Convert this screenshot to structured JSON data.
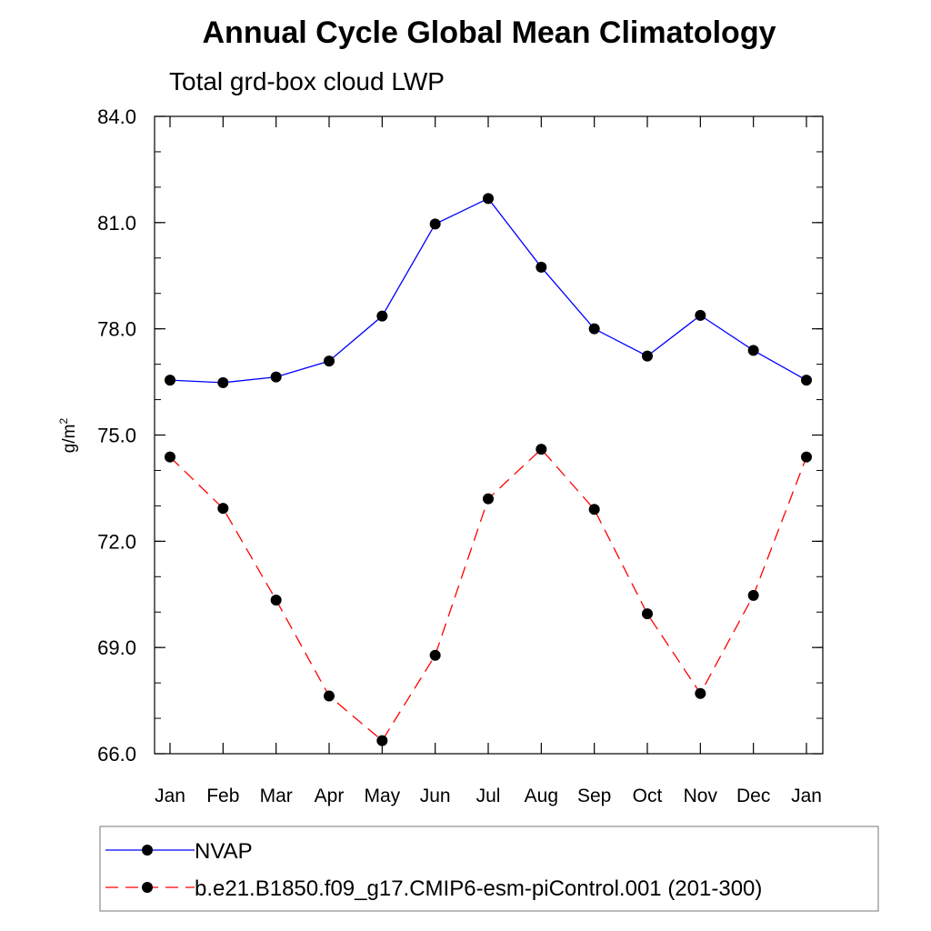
{
  "chart_data": {
    "type": "line",
    "title": "Annual Cycle Global Mean Climatology",
    "subtitle": "Total grd-box cloud LWP",
    "ylabel": "g/m",
    "ylabel_superscript": "2",
    "ylim": [
      66.0,
      84.0
    ],
    "y_ticks": [
      "84.0",
      "81.0",
      "78.0",
      "75.0",
      "72.0",
      "69.0",
      "66.0"
    ],
    "categories": [
      "Jan",
      "Feb",
      "Mar",
      "Apr",
      "May",
      "Jun",
      "Jul",
      "Aug",
      "Sep",
      "Oct",
      "Nov",
      "Dec",
      "Jan"
    ],
    "grid": false,
    "legend_position": "bottom",
    "series": [
      {
        "name": "NVAP",
        "color": "#0000ff",
        "line_style": "solid",
        "marker": "filled-circle",
        "values": [
          76.55,
          76.48,
          76.64,
          77.09,
          78.36,
          80.96,
          81.68,
          79.74,
          78.0,
          77.23,
          78.38,
          77.39,
          76.55
        ]
      },
      {
        "name": "b.e21.B1850.f09_g17.CMIP6-esm-piControl.001 (201-300)",
        "color": "#ff0000",
        "line_style": "dashed",
        "marker": "filled-circle",
        "values": [
          74.38,
          72.93,
          70.34,
          67.63,
          66.37,
          68.78,
          73.2,
          74.6,
          72.9,
          69.95,
          67.7,
          70.47,
          74.38
        ]
      }
    ]
  }
}
